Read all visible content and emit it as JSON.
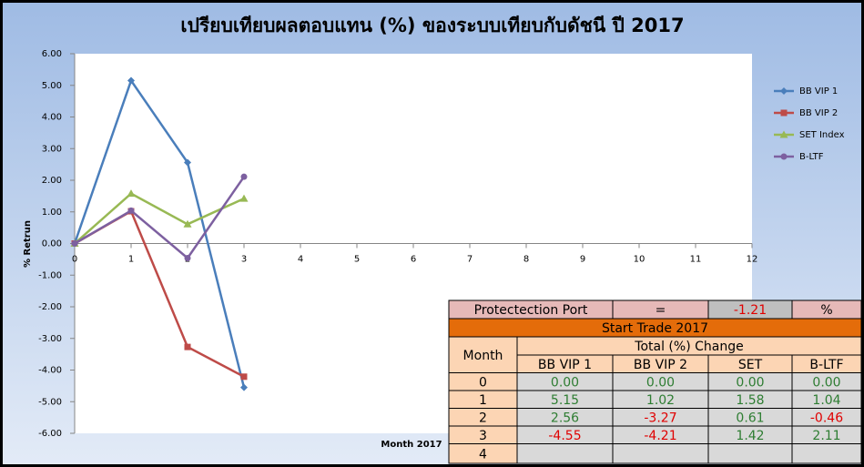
{
  "chart_data": {
    "type": "line",
    "title": "เปรียบเทียบผลตอบแทน (%) ของระบบเทียบกับดัชนี ปี 2017",
    "y_label": "% Retrun",
    "x_label": "Month 2017",
    "x": [
      0,
      1,
      2,
      3
    ],
    "xlim": [
      0,
      12
    ],
    "xticks": [
      0,
      1,
      2,
      3,
      4,
      5,
      6,
      7,
      8,
      9,
      10,
      11,
      12
    ],
    "ylim": [
      -6,
      6
    ],
    "yticks": [
      {
        "value": -6,
        "label": "-6.00"
      },
      {
        "value": -5,
        "label": "-5.00"
      },
      {
        "value": -4,
        "label": "-4.00"
      },
      {
        "value": -3,
        "label": "-3.00"
      },
      {
        "value": -2,
        "label": "-2.00"
      },
      {
        "value": -1,
        "label": "-1.00"
      },
      {
        "value": 0,
        "label": "0.00"
      },
      {
        "value": 1,
        "label": "1.00"
      },
      {
        "value": 2,
        "label": "2.00"
      },
      {
        "value": 3,
        "label": "3.00"
      },
      {
        "value": 4,
        "label": "4.00"
      },
      {
        "value": 5,
        "label": "5.00"
      },
      {
        "value": 6,
        "label": "6.00"
      }
    ],
    "grid": false,
    "legend": "right",
    "series": [
      {
        "name": "BB VIP 1",
        "color": "#4a7ebb",
        "marker": "diamond",
        "values": [
          0,
          5.15,
          2.56,
          -4.55
        ]
      },
      {
        "name": "BB VIP 2",
        "color": "#be4b48",
        "marker": "square",
        "values": [
          0,
          1.02,
          -3.27,
          -4.21
        ]
      },
      {
        "name": "SET Index",
        "color": "#98b954",
        "marker": "triangle",
        "values": [
          0,
          1.58,
          0.61,
          1.42
        ]
      },
      {
        "name": "B-LTF",
        "color": "#7d60a0",
        "marker": "circle",
        "values": [
          0,
          1.04,
          -0.46,
          2.11
        ]
      }
    ]
  },
  "table": {
    "port_label": "Protectection Port",
    "equals": "=",
    "port_value": "-1.21",
    "unit": "%",
    "banner": "Start Trade 2017",
    "month_header": "Month",
    "group_header": "Total (%) Change",
    "columns": [
      "BB VIP 1",
      "BB VIP 2",
      "SET",
      "B-LTF"
    ],
    "rows": [
      [
        "0",
        "0.00",
        "0.00",
        "0.00",
        "0.00"
      ],
      [
        "1",
        "5.15",
        "1.02",
        "1.58",
        "1.04"
      ],
      [
        "2",
        "2.56",
        "-3.27",
        "0.61",
        "-0.46"
      ],
      [
        "3",
        "-4.55",
        "-4.21",
        "1.42",
        "2.11"
      ],
      [
        "4",
        null,
        null,
        null,
        null
      ]
    ]
  }
}
